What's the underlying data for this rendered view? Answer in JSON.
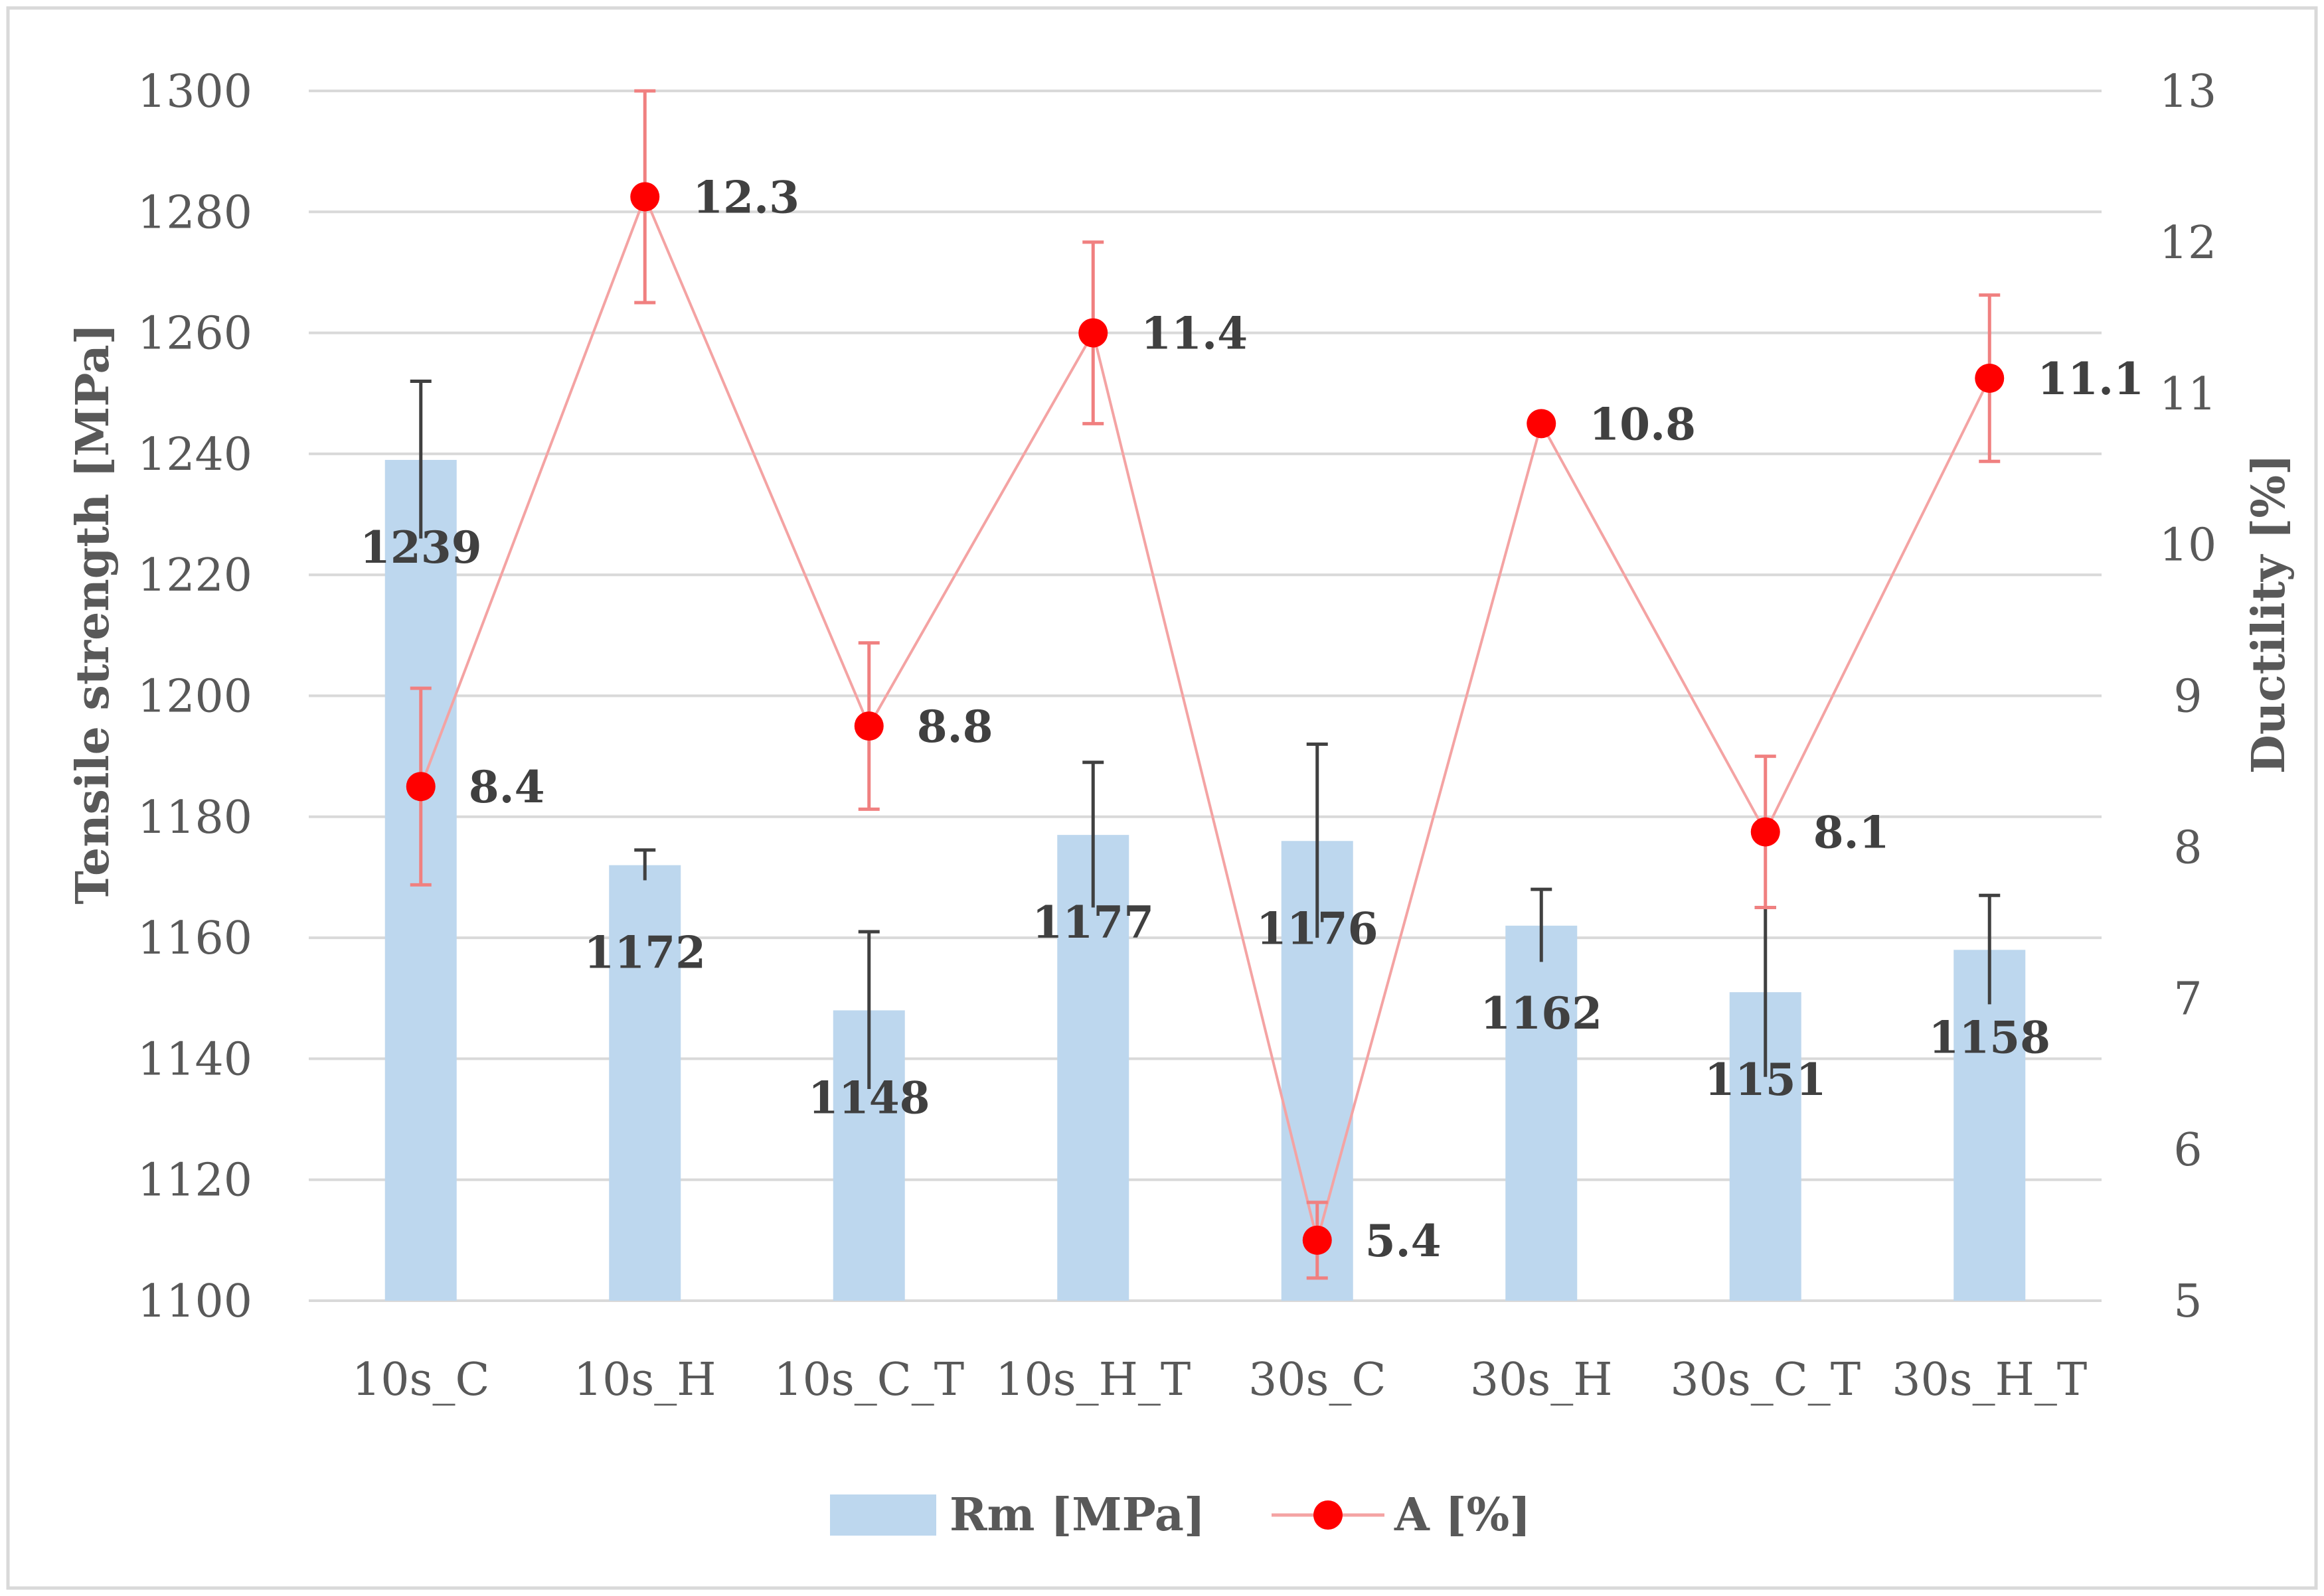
{
  "chart_data": {
    "type": "bar+line",
    "categories": [
      "10s_C",
      "10s_H",
      "10s_C_T",
      "10s_H_T",
      "30s_C",
      "30s_H",
      "30s_C_T",
      "30s_H_T"
    ],
    "series": [
      {
        "name": "Rm [MPa]",
        "type": "bar",
        "axis": "left",
        "color": "#BDD7EE",
        "values": [
          1239,
          1172,
          1148,
          1177,
          1176,
          1162,
          1151,
          1158
        ],
        "labels": [
          "1239",
          "1172",
          "1148",
          "1177",
          "1176",
          "1162",
          "1151",
          "1158"
        ],
        "error": [
          13,
          2.5,
          13,
          12,
          16,
          6,
          14,
          9
        ],
        "error_color": "#404040"
      },
      {
        "name": "A [%]",
        "type": "line",
        "axis": "right",
        "color": "#FF0000",
        "line_color": "#F4A3A3",
        "values": [
          8.4,
          12.3,
          8.8,
          11.4,
          5.4,
          10.8,
          8.1,
          11.1
        ],
        "labels": [
          "8.4",
          "12.3",
          "8.8",
          "11.4",
          "5.4",
          "10.8",
          "8.1",
          "11.1"
        ],
        "error": [
          0.65,
          0.7,
          0.55,
          0.6,
          0.25,
          0,
          0.5,
          0.55
        ],
        "error_color": "#F08080"
      }
    ],
    "y_left": {
      "label": "Tensile strength [MPa]",
      "min": 1100,
      "max": 1300,
      "step": 20,
      "ticks": [
        "1100",
        "1120",
        "1140",
        "1160",
        "1180",
        "1200",
        "1220",
        "1240",
        "1260",
        "1280",
        "1300"
      ]
    },
    "y_right": {
      "label": "Ductility [%]",
      "min": 5,
      "max": 13,
      "step": 1,
      "ticks": [
        "5",
        "6",
        "7",
        "8",
        "9",
        "10",
        "11",
        "12",
        "13"
      ]
    },
    "xlabel": "",
    "grid": true,
    "legend": {
      "placement": "bottom",
      "items": [
        {
          "label": "Rm [MPa]",
          "kind": "bar"
        },
        {
          "label": "A [%]",
          "kind": "line-marker"
        }
      ]
    },
    "colors": {
      "gridline": "#D9D9D9",
      "border": "#D9D9D9",
      "text": "#595959"
    }
  }
}
